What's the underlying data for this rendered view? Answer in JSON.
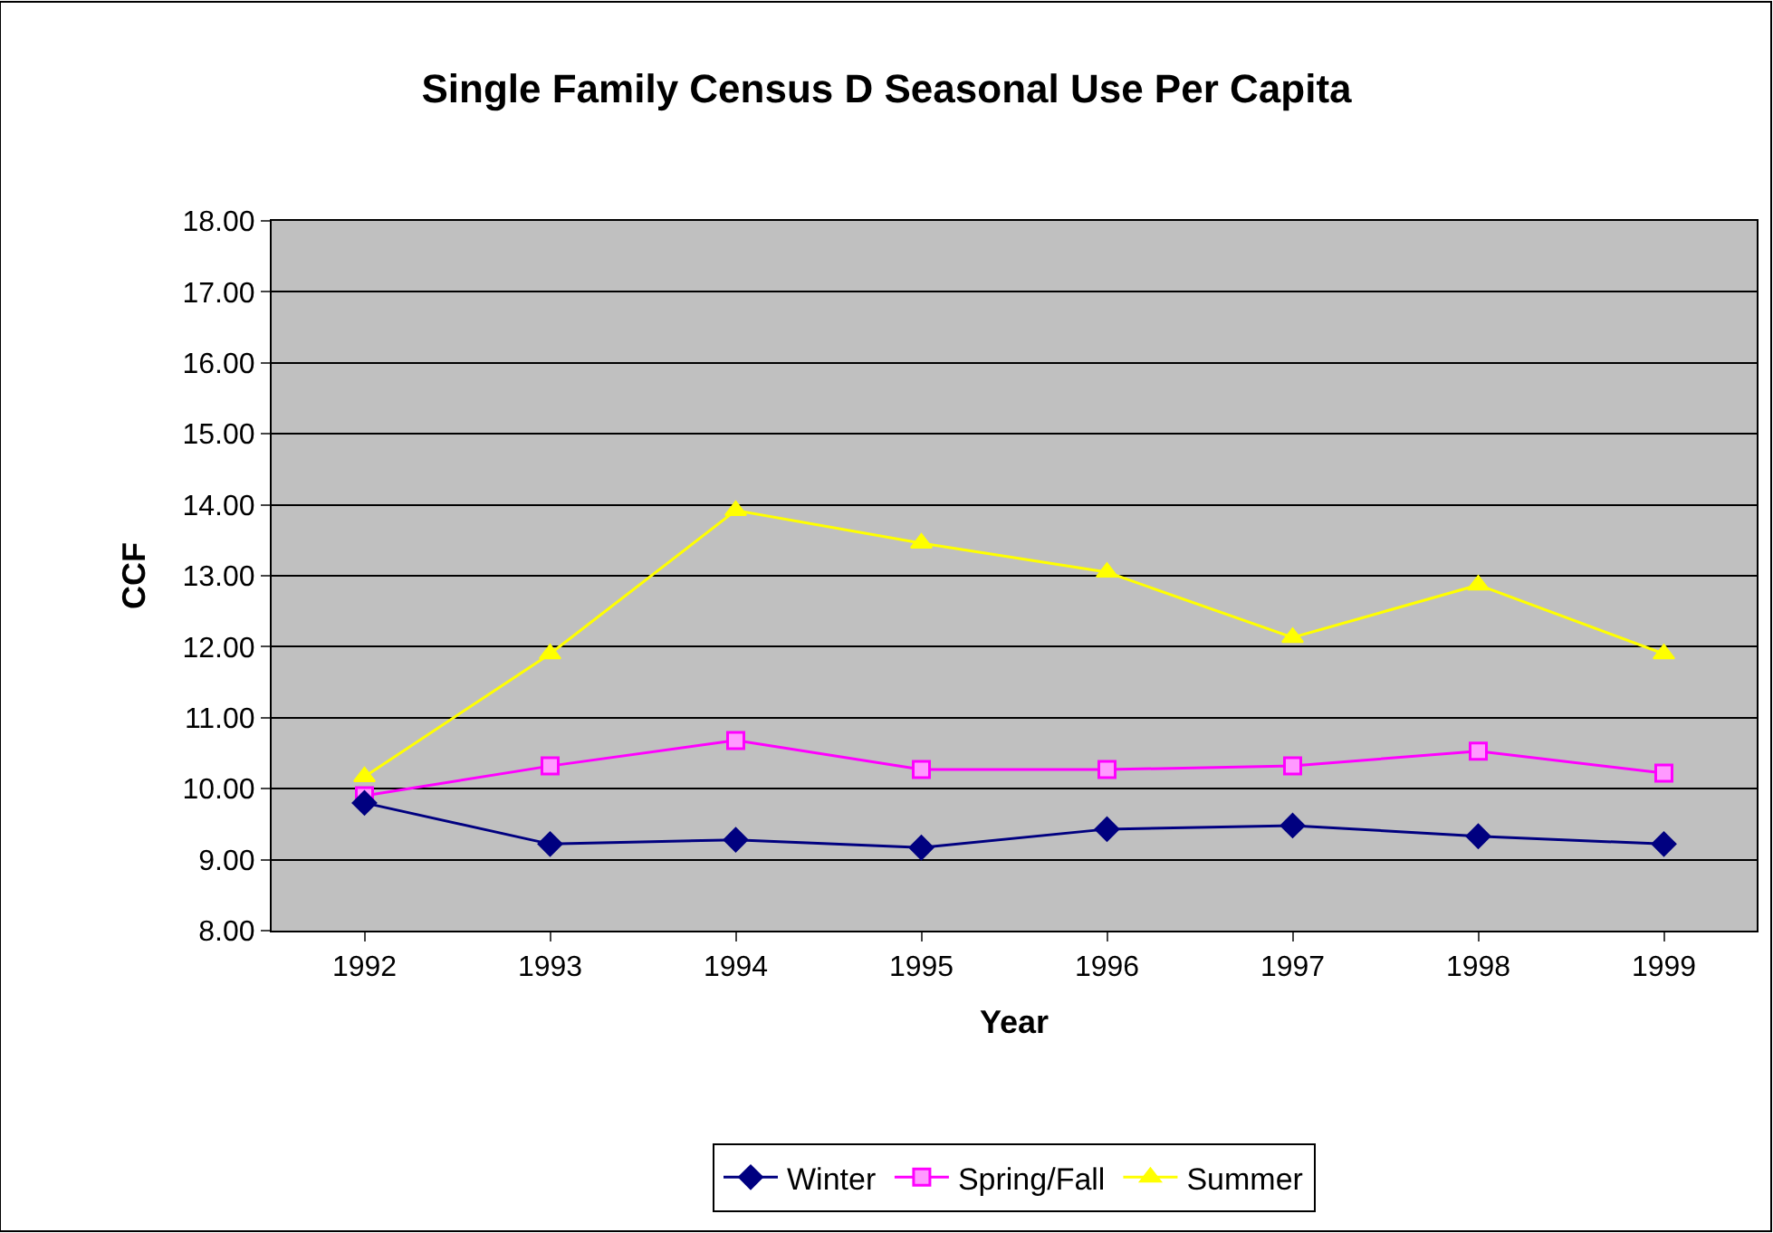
{
  "chart_data": {
    "type": "line",
    "title": "Single Family Census D Seasonal Use Per Capita",
    "xlabel": "Year",
    "ylabel": "CCF",
    "categories": [
      "1992",
      "1993",
      "1994",
      "1995",
      "1996",
      "1997",
      "1998",
      "1999"
    ],
    "series": [
      {
        "name": "Winter",
        "color": "#000080",
        "marker": "diamond",
        "values": [
          9.8,
          9.22,
          9.28,
          9.17,
          9.43,
          9.48,
          9.33,
          9.22
        ]
      },
      {
        "name": "Spring/Fall",
        "color": "#ff00ff",
        "marker": "square",
        "values": [
          9.9,
          10.32,
          10.68,
          10.27,
          10.27,
          10.32,
          10.53,
          10.22
        ]
      },
      {
        "name": "Summer",
        "color": "#ffff00",
        "marker": "triangle",
        "values": [
          10.17,
          11.9,
          13.92,
          13.46,
          13.05,
          12.13,
          12.87,
          11.9
        ]
      }
    ],
    "ylim": [
      8,
      18
    ],
    "yticks": [
      {
        "value": 8,
        "label": "8.00"
      },
      {
        "value": 9,
        "label": "9.00"
      },
      {
        "value": 10,
        "label": "10.00"
      },
      {
        "value": 11,
        "label": "11.00"
      },
      {
        "value": 12,
        "label": "12.00"
      },
      {
        "value": 13,
        "label": "13.00"
      },
      {
        "value": 14,
        "label": "14.00"
      },
      {
        "value": 15,
        "label": "15.00"
      },
      {
        "value": 16,
        "label": "16.00"
      },
      {
        "value": 17,
        "label": "17.00"
      },
      {
        "value": 18,
        "label": "18.00"
      }
    ],
    "grid": "y",
    "legend": "bottom",
    "line_style": "solid"
  }
}
